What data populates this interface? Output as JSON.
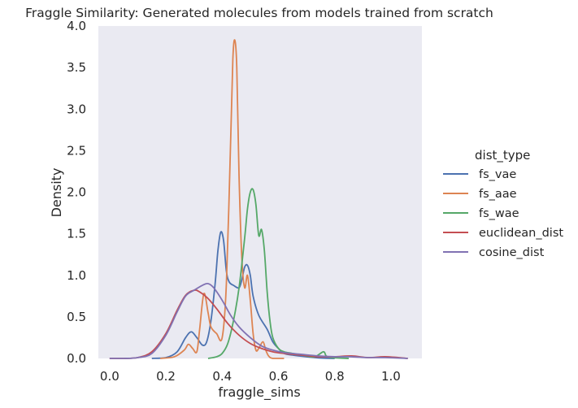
{
  "chart_data": {
    "type": "line",
    "title": "Fraggle Similarity: Generated molecules from models trained from scratch",
    "xlabel": "fraggle_sims",
    "ylabel": "Density",
    "xlim": [
      -0.04,
      1.11
    ],
    "ylim": [
      0,
      4.0
    ],
    "xticks": [
      "0.0",
      "0.2",
      "0.4",
      "0.6",
      "0.8",
      "1.0"
    ],
    "yticks": [
      "0.0",
      "0.5",
      "1.0",
      "1.5",
      "2.0",
      "2.5",
      "3.0",
      "3.5",
      "4.0"
    ],
    "grid": false,
    "background": "#eaeaf2",
    "legend": {
      "title": "dist_type",
      "placement": "right"
    },
    "series": [
      {
        "name": "fs_vae",
        "color": "#4c72b0",
        "x": [
          0.15,
          0.2,
          0.24,
          0.27,
          0.29,
          0.31,
          0.33,
          0.345,
          0.36,
          0.375,
          0.385,
          0.395,
          0.405,
          0.415,
          0.425,
          0.44,
          0.46,
          0.47,
          0.48,
          0.49,
          0.5,
          0.51,
          0.53,
          0.56,
          0.58,
          0.6,
          0.62,
          0.65,
          0.7,
          0.75,
          0.8
        ],
        "y": [
          0.0,
          0.01,
          0.08,
          0.25,
          0.32,
          0.25,
          0.16,
          0.2,
          0.45,
          0.9,
          1.3,
          1.52,
          1.42,
          1.05,
          0.92,
          0.88,
          0.85,
          0.95,
          1.1,
          1.12,
          1.0,
          0.75,
          0.52,
          0.35,
          0.2,
          0.12,
          0.06,
          0.04,
          0.02,
          0.005,
          0.0
        ]
      },
      {
        "name": "fs_aae",
        "color": "#dd8452",
        "x": [
          0.18,
          0.23,
          0.265,
          0.28,
          0.295,
          0.31,
          0.32,
          0.335,
          0.35,
          0.36,
          0.38,
          0.4,
          0.415,
          0.43,
          0.438,
          0.445,
          0.452,
          0.46,
          0.47,
          0.48,
          0.49,
          0.5,
          0.51,
          0.52,
          0.53,
          0.545,
          0.555,
          0.565,
          0.58,
          0.62
        ],
        "y": [
          0.0,
          0.02,
          0.1,
          0.17,
          0.12,
          0.08,
          0.35,
          0.78,
          0.55,
          0.38,
          0.3,
          0.25,
          0.9,
          2.6,
          3.6,
          3.83,
          3.5,
          2.2,
          1.2,
          0.85,
          1.0,
          0.7,
          0.3,
          0.1,
          0.12,
          0.2,
          0.1,
          0.03,
          0.0,
          0.0
        ]
      },
      {
        "name": "fs_wae",
        "color": "#55a868",
        "x": [
          0.35,
          0.38,
          0.4,
          0.42,
          0.44,
          0.46,
          0.48,
          0.49,
          0.5,
          0.51,
          0.52,
          0.53,
          0.54,
          0.55,
          0.56,
          0.57,
          0.58,
          0.6,
          0.62,
          0.65,
          0.7,
          0.73,
          0.76,
          0.77,
          0.79,
          0.85
        ],
        "y": [
          0.0,
          0.02,
          0.06,
          0.18,
          0.45,
          0.85,
          1.45,
          1.8,
          2.0,
          2.03,
          1.85,
          1.48,
          1.55,
          1.3,
          0.8,
          0.45,
          0.25,
          0.12,
          0.08,
          0.06,
          0.03,
          0.02,
          0.08,
          0.03,
          0.01,
          0.0
        ]
      },
      {
        "name": "euclidean_dist",
        "color": "#c44e52",
        "x": [
          0.0,
          0.05,
          0.1,
          0.15,
          0.2,
          0.24,
          0.27,
          0.3,
          0.32,
          0.35,
          0.38,
          0.42,
          0.46,
          0.5,
          0.54,
          0.58,
          0.62,
          0.68,
          0.74,
          0.8,
          0.86,
          0.92,
          0.98,
          1.06
        ],
        "y": [
          0.0,
          0.0,
          0.01,
          0.08,
          0.3,
          0.58,
          0.76,
          0.82,
          0.8,
          0.72,
          0.6,
          0.42,
          0.28,
          0.18,
          0.12,
          0.08,
          0.06,
          0.04,
          0.02,
          0.02,
          0.03,
          0.01,
          0.02,
          0.0
        ]
      },
      {
        "name": "cosine_dist",
        "color": "#8172b3",
        "x": [
          0.0,
          0.05,
          0.1,
          0.15,
          0.2,
          0.24,
          0.27,
          0.3,
          0.33,
          0.35,
          0.37,
          0.4,
          0.43,
          0.46,
          0.5,
          0.54,
          0.58,
          0.62,
          0.68,
          0.74,
          0.8,
          0.86,
          0.92,
          0.98,
          1.06
        ],
        "y": [
          0.0,
          0.0,
          0.01,
          0.06,
          0.28,
          0.56,
          0.75,
          0.82,
          0.88,
          0.9,
          0.85,
          0.7,
          0.52,
          0.38,
          0.25,
          0.15,
          0.1,
          0.07,
          0.05,
          0.03,
          0.02,
          0.02,
          0.01,
          0.01,
          0.0
        ]
      }
    ]
  }
}
